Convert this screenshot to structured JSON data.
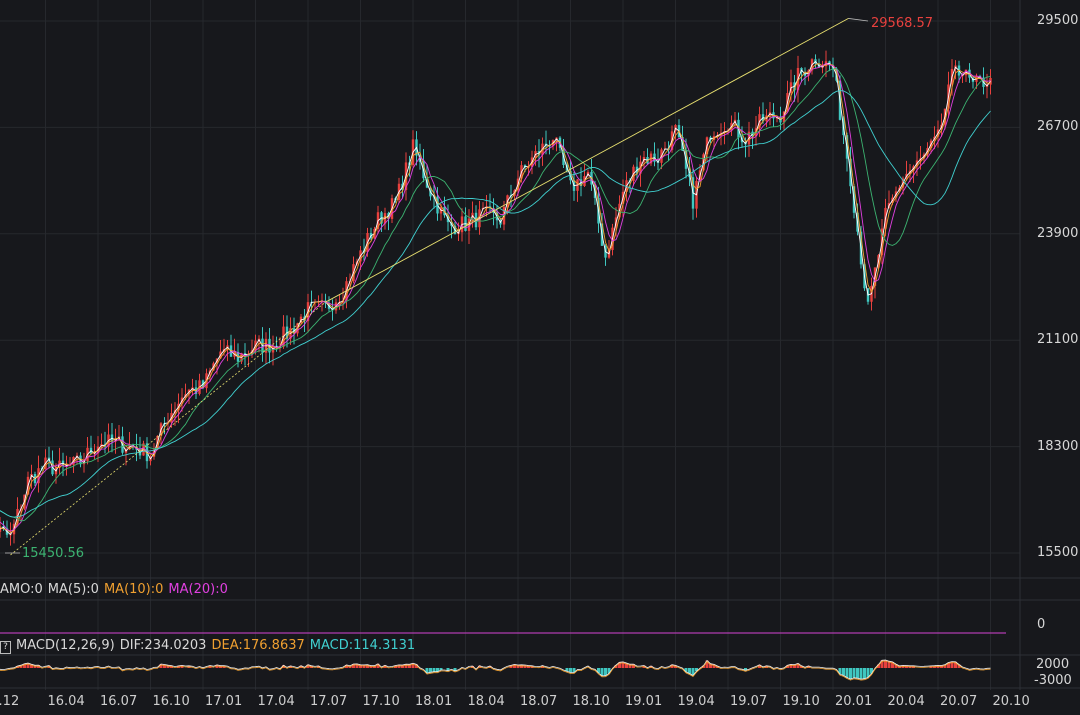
{
  "chart_data": {
    "type": "candlestick",
    "title": "",
    "months": [
      "15.12",
      "16.01",
      "16.02",
      "16.03",
      "16.04",
      "16.05",
      "16.06",
      "16.07",
      "16.08",
      "16.09",
      "16.10",
      "16.11",
      "16.12",
      "17.01",
      "17.02",
      "17.03",
      "17.04",
      "17.05",
      "17.06",
      "17.07",
      "17.08",
      "17.09",
      "17.10",
      "17.11",
      "17.12",
      "18.01",
      "18.02",
      "18.03",
      "18.04",
      "18.05",
      "18.06",
      "18.07",
      "18.08",
      "18.09",
      "18.10",
      "18.11",
      "18.12",
      "19.01",
      "19.02",
      "19.03",
      "19.04",
      "19.05",
      "19.06",
      "19.07",
      "19.08",
      "19.09",
      "19.10",
      "19.11",
      "19.12",
      "20.01",
      "20.02",
      "20.03",
      "20.04",
      "20.05",
      "20.06",
      "20.07",
      "20.08",
      "20.09",
      "20.10"
    ],
    "closes": [
      17400,
      16200,
      15900,
      17400,
      17800,
      17700,
      17900,
      18400,
      18400,
      18300,
      18100,
      19100,
      19760,
      19860,
      20800,
      20660,
      20940,
      21000,
      21350,
      21890,
      21950,
      22400,
      23370,
      24270,
      24720,
      26150,
      25030,
      24100,
      24160,
      24400,
      24270,
      25400,
      25960,
      26460,
      25100,
      25500,
      23300,
      25000,
      25900,
      25900,
      26600,
      24800,
      26600,
      26860,
      26400,
      26900,
      27050,
      28050,
      28540,
      28250,
      25400,
      21900,
      24350,
      25400,
      25800,
      26400,
      28400,
      27780,
      28000
    ],
    "y_ticks": [
      "29500",
      "26700",
      "23900",
      "21100",
      "18300",
      "15500"
    ],
    "y_range": [
      15500,
      29500
    ],
    "x_ticks": [
      "15.12",
      "16.04",
      "16.07",
      "16.10",
      "17.01",
      "17.04",
      "17.07",
      "17.10",
      "18.01",
      "18.04",
      "18.07",
      "18.10",
      "19.01",
      "19.04",
      "19.07",
      "19.10",
      "20.01",
      "20.04",
      "20.07",
      "20.10"
    ],
    "annotations": {
      "high": "29568.57",
      "low": "15450.56"
    },
    "volume": {
      "label": "AMO:0",
      "ma5": "MA(5):0",
      "ma10": "MA(10):0",
      "ma20": "MA(20):0",
      "axis": "0"
    },
    "macd": {
      "label": "MACD(12,26,9)",
      "dif": "DIF:234.0203",
      "dea": "DEA:176.8637",
      "macd": "MACD:114.3131",
      "axis_top": "2000",
      "axis_bottom": "-3000"
    },
    "colors": {
      "up": "#e8413e",
      "down": "#3fc7c0",
      "ma5": "#ffffff",
      "ma10": "#f0a030",
      "ma20": "#e040e0",
      "ma60": "#3cb371",
      "ma120": "#40d0d0",
      "trend": "#e8e070"
    }
  }
}
